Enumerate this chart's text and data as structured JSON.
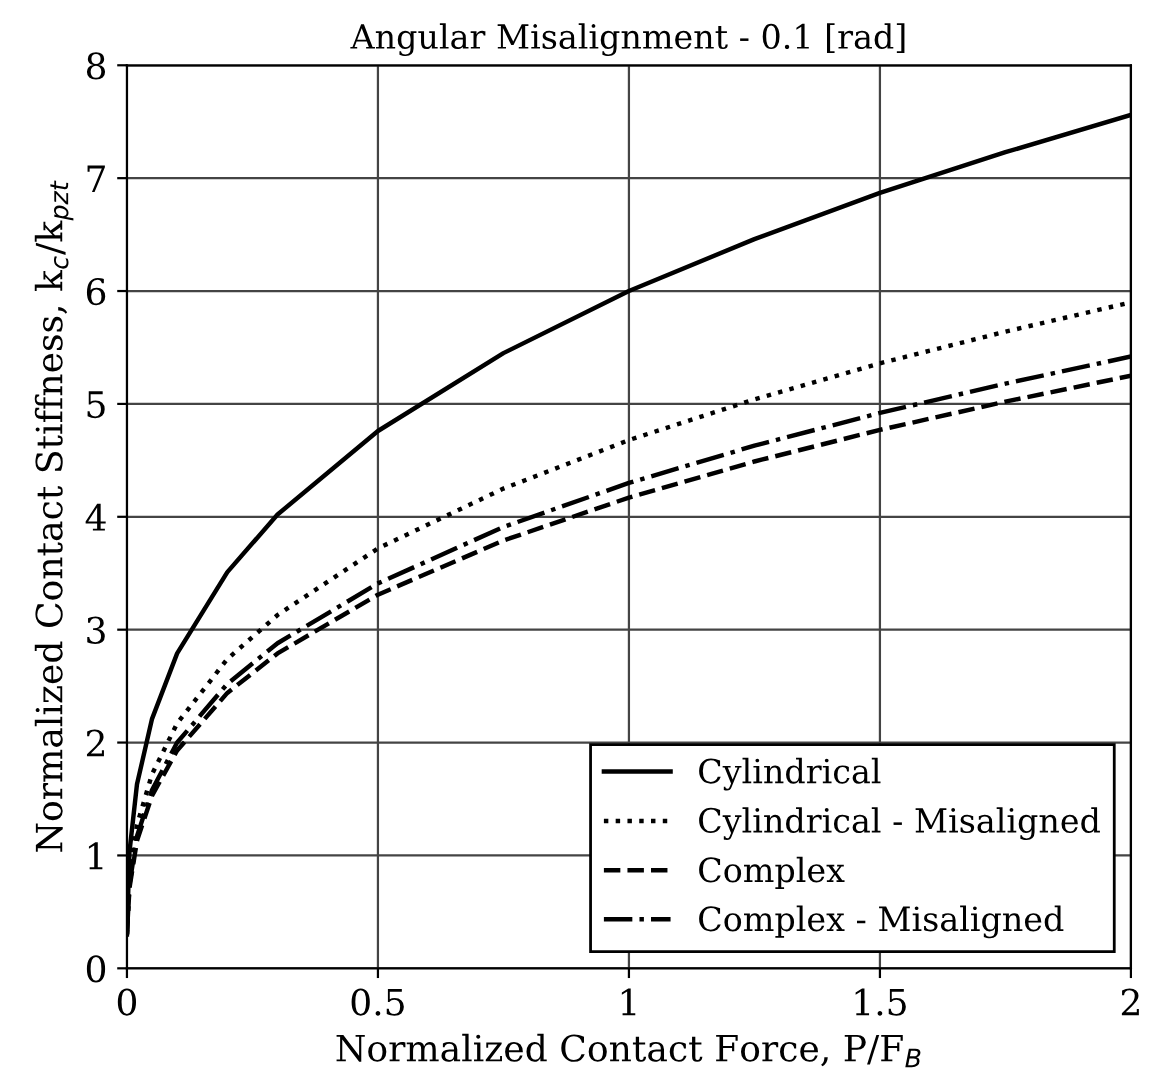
{
  "chart_data": {
    "type": "line",
    "title": "Angular Misalignment - 0.1 [rad]",
    "xlabel": "Normalized Contact Force, P/F$_{B}$",
    "ylabel": "Normalized Contact Stiffness, k$_{c}$/k$_{pzt}$",
    "x": [
      0,
      0.005,
      0.02,
      0.05,
      0.1,
      0.2,
      0.3,
      0.5,
      0.75,
      1,
      1.25,
      1.5,
      1.75,
      2
    ],
    "series": [
      {
        "name": "Cylindrical",
        "color": "#000000",
        "line_style": "solid",
        "values": [
          0.3,
          1.03,
          1.63,
          2.21,
          2.79,
          3.51,
          4.02,
          4.76,
          5.45,
          6.0,
          6.46,
          6.87,
          7.23,
          7.56
        ]
      },
      {
        "name": "Cylindrical - Misaligned",
        "color": "#000000",
        "line_style": "dotted",
        "values": [
          0.3,
          0.8,
          1.27,
          1.72,
          2.17,
          2.74,
          3.13,
          3.72,
          4.25,
          4.68,
          5.04,
          5.36,
          5.64,
          5.9
        ]
      },
      {
        "name": "Complex",
        "color": "#000000",
        "line_style": "dashed",
        "values": [
          0.3,
          0.71,
          1.13,
          1.53,
          1.93,
          2.44,
          2.79,
          3.31,
          3.79,
          4.17,
          4.49,
          4.77,
          5.02,
          5.25
        ]
      },
      {
        "name": "Complex - Misaligned",
        "color": "#000000",
        "line_style": "dashdot",
        "values": [
          0.3,
          0.74,
          1.17,
          1.58,
          2.0,
          2.52,
          2.88,
          3.41,
          3.91,
          4.3,
          4.63,
          4.92,
          5.18,
          5.42
        ]
      }
    ],
    "xlim": [
      0,
      2
    ],
    "ylim": [
      0,
      8
    ],
    "xticks": [
      0,
      0.5,
      1,
      1.5,
      2
    ],
    "yticks": [
      0,
      1,
      2,
      3,
      4,
      5,
      6,
      7,
      8
    ],
    "grid": true,
    "legend": "bottom right",
    "marker": "none"
  }
}
